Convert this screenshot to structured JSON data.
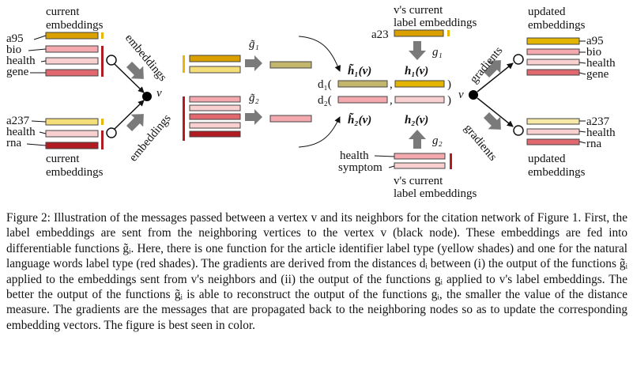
{
  "figure": {
    "labels": {
      "current_embeddings_top": [
        "current",
        "embeddings"
      ],
      "current_embeddings_bottom": [
        "current",
        "embeddings"
      ],
      "words_top_left": [
        "a95",
        "bio",
        "health",
        "gene"
      ],
      "words_bottom_left": [
        "a237",
        "health",
        "rna"
      ],
      "embeddings_rot": "embeddings",
      "gradients_rot": "gradients",
      "g_tilde_1": "g̃₁",
      "g_tilde_2": "g̃₂",
      "g_1": "g₁",
      "g_2": "g₂",
      "v": "v",
      "h_tilde_1": "h̃₁(v)",
      "h_tilde_2": "h̃₂(v)",
      "h_1": "h₁(v)",
      "h_2": "h₂(v)",
      "d1": "d₁(",
      "d2": "d₂(",
      "comma": ",",
      "close_paren": ")",
      "v_label_top": [
        "v's current",
        "label embeddings"
      ],
      "v_label_bottom": [
        "v's current",
        "label embeddings"
      ],
      "a23": "a23",
      "health_symptom": [
        "health",
        "symptom"
      ],
      "updated_top": [
        "updated",
        "embeddings"
      ],
      "updated_bottom": [
        "updated",
        "embeddings"
      ],
      "words_top_right": [
        "a95",
        "bio",
        "health",
        "gene"
      ],
      "words_bottom_right": [
        "a237",
        "health",
        "rna"
      ]
    },
    "colors": {
      "yellow_dark": "#d9a000",
      "yellow_bar": "#e8b800",
      "yellow_light": "#f3de7a",
      "yellow_pale": "#f6e8a6",
      "olive": "#c3b56b",
      "red_dark": "#b01c22",
      "red_mid": "#e0686e",
      "red_light": "#f3a9ae",
      "pink_pale": "#f8d0d0",
      "arrow_gray": "#7a7a7a"
    }
  },
  "caption": {
    "text": "Figure 2:  Illustration of the messages passed between a vertex v and its neighbors for the citation network of Figure 1. First, the label embeddings are sent from the neighboring vertices to the vertex v (black node). These embeddings are fed into differentiable functions g̃ᵢ. Here, there is one function for the article identifier label type (yellow shades) and one for the natural language words label type (red shades). The gradients are derived from the distances dᵢ between (i) the output of the functions g̃ᵢ applied to the embeddings sent from v's neighbors and (ii) the output of the functions gᵢ applied to v's label embeddings. The better the output of the functions g̃ᵢ is able to reconstruct the output of the functions gᵢ, the smaller the value of the distance measure. The gradients are the messages that are propagated back to the neighboring nodes so as to update the corresponding embedding vectors. The figure is best seen in color."
  }
}
